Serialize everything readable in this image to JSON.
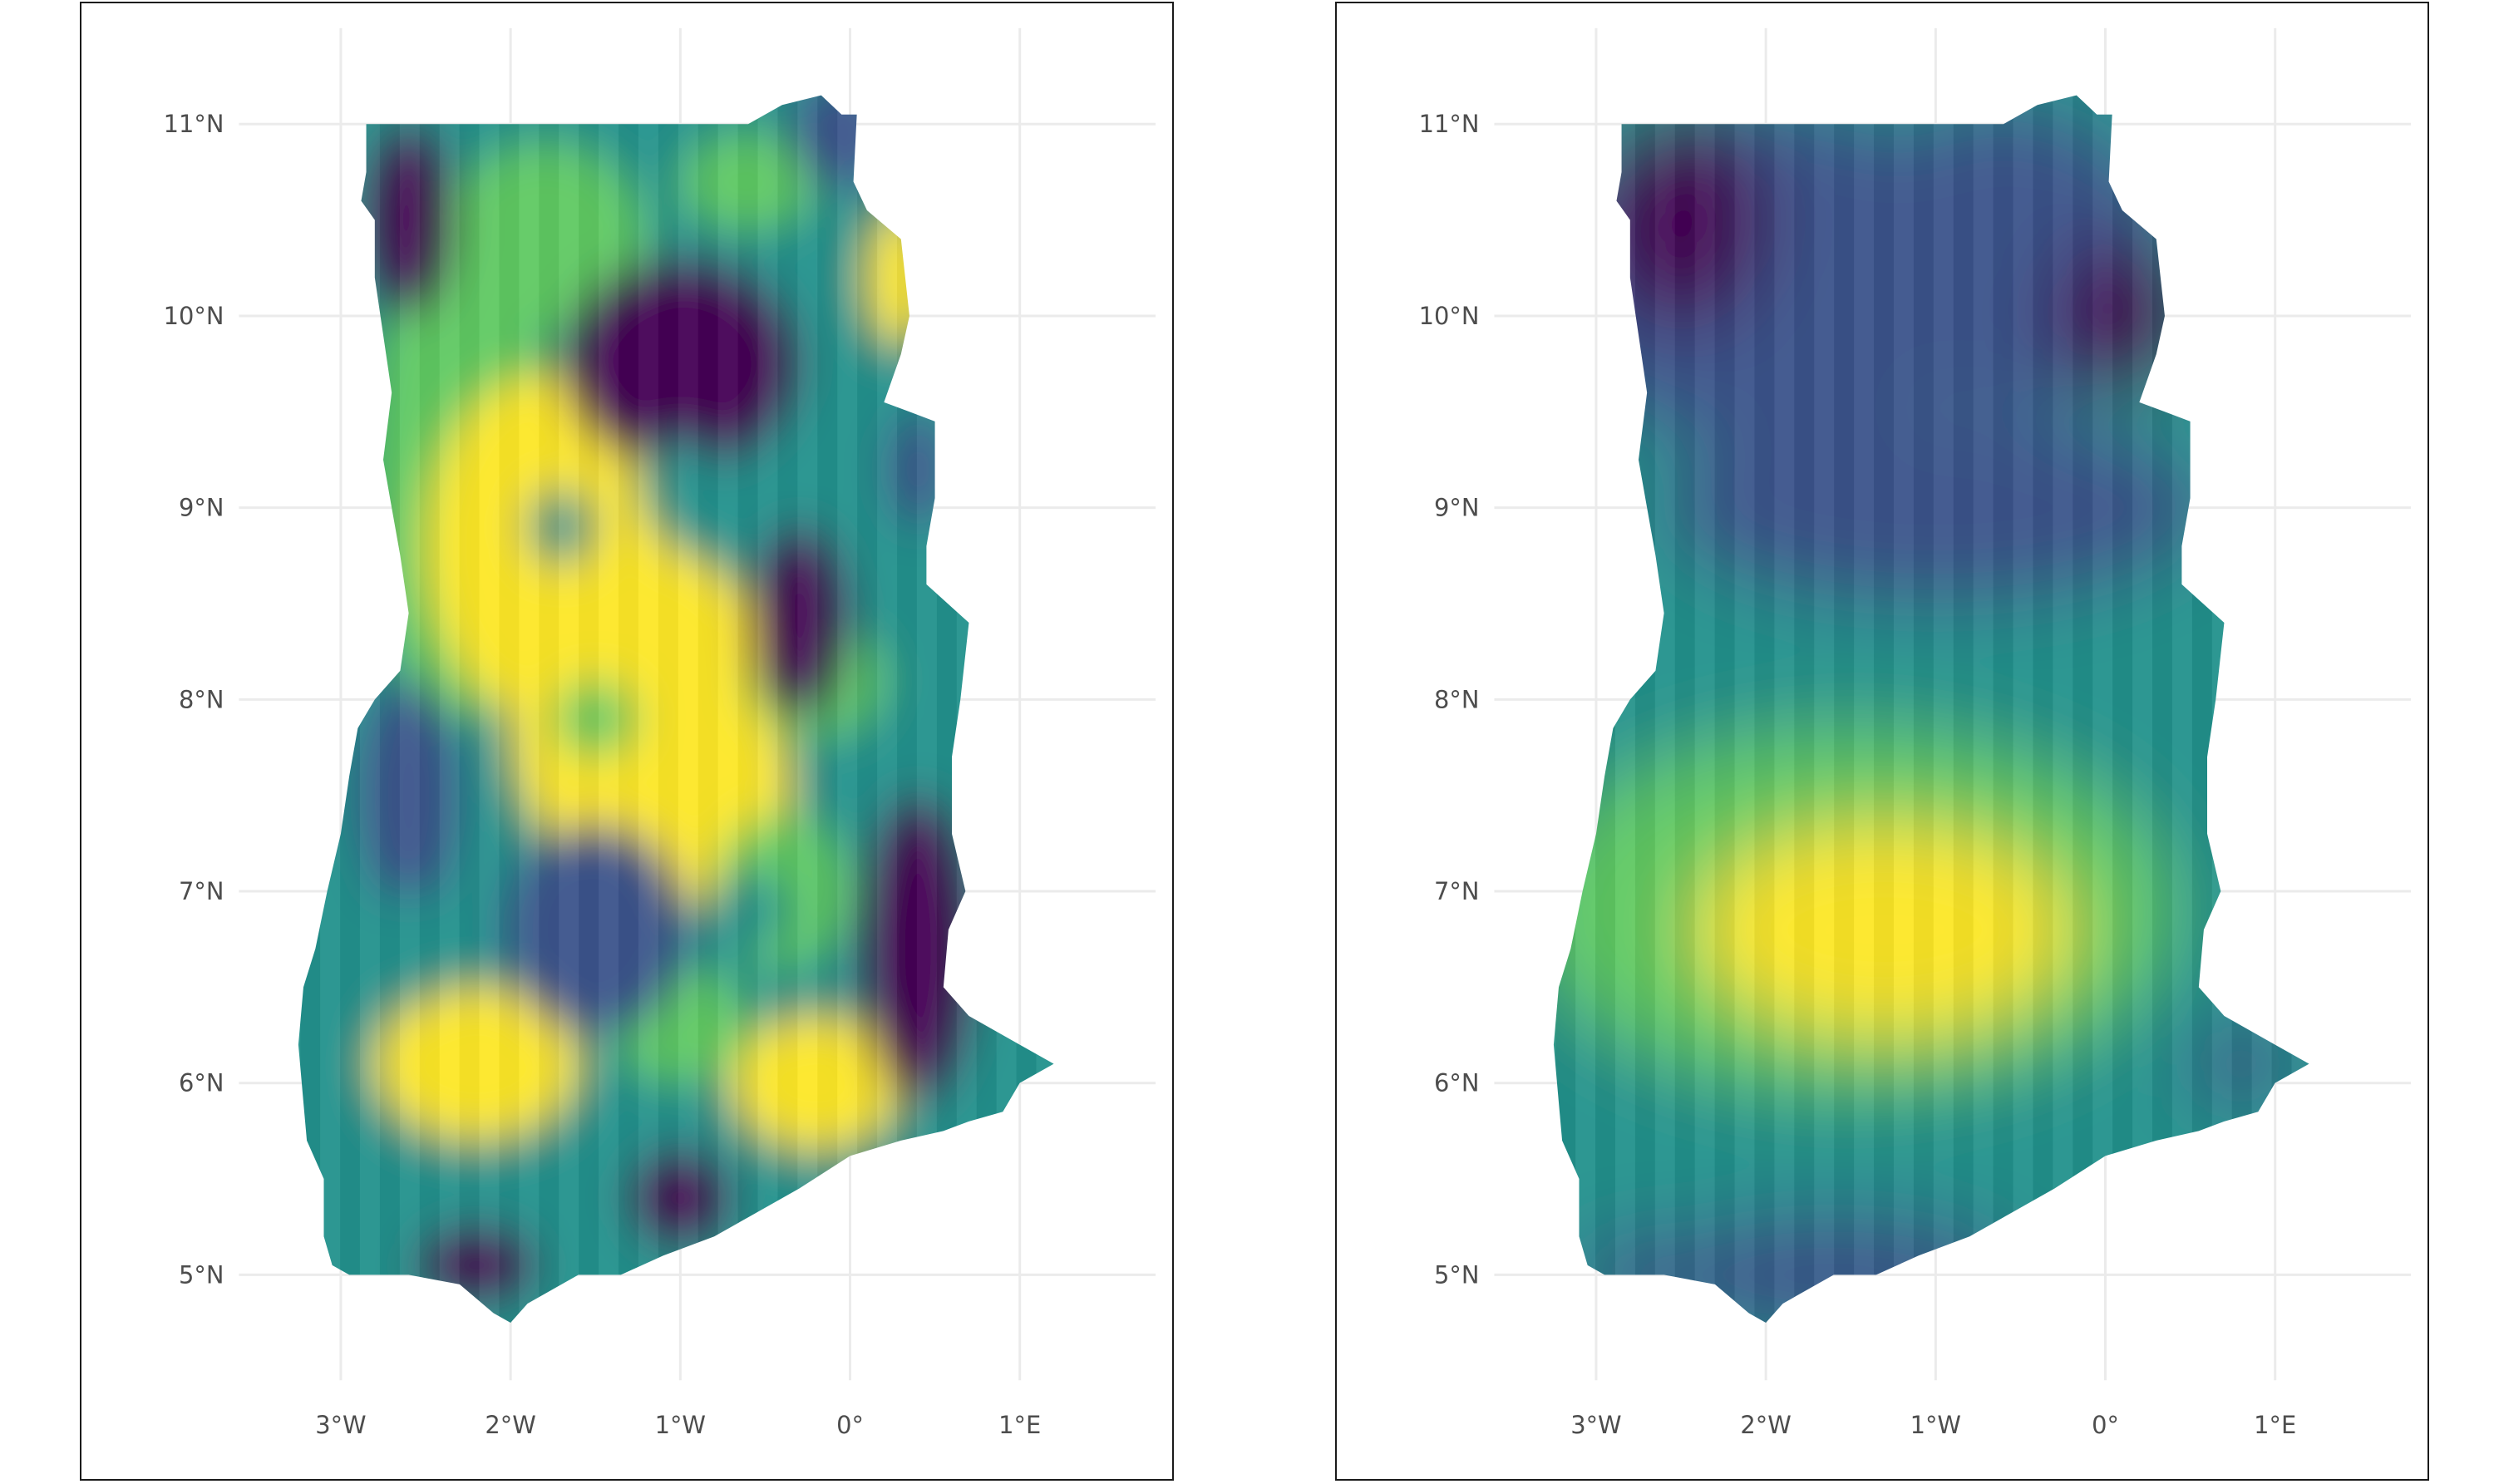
{
  "panels": [
    {
      "id": "left",
      "colormap": "viridis",
      "pattern": "patchy-local",
      "x_ticks": [
        {
          "value": -3,
          "label": "3°W"
        },
        {
          "value": -2,
          "label": "2°W"
        },
        {
          "value": -1,
          "label": "1°W"
        },
        {
          "value": 0,
          "label": "0°"
        },
        {
          "value": 1,
          "label": "1°E"
        }
      ],
      "y_ticks": [
        {
          "value": 5,
          "label": "5°N"
        },
        {
          "value": 6,
          "label": "6°N"
        },
        {
          "value": 7,
          "label": "7°N"
        },
        {
          "value": 8,
          "label": "8°N"
        },
        {
          "value": 9,
          "label": "9°N"
        },
        {
          "value": 10,
          "label": "10°N"
        },
        {
          "value": 11,
          "label": "11°N"
        }
      ],
      "xlim": [
        -3.6,
        1.8
      ],
      "ylim": [
        4.45,
        11.5
      ]
    },
    {
      "id": "right",
      "colormap": "viridis",
      "pattern": "smooth-peak-south-central",
      "x_ticks": [
        {
          "value": -3,
          "label": "3°W"
        },
        {
          "value": -2,
          "label": "2°W"
        },
        {
          "value": -1,
          "label": "1°W"
        },
        {
          "value": 0,
          "label": "0°"
        },
        {
          "value": 1,
          "label": "1°E"
        }
      ],
      "y_ticks": [
        {
          "value": 5,
          "label": "5°N"
        },
        {
          "value": 6,
          "label": "6°N"
        },
        {
          "value": 7,
          "label": "7°N"
        },
        {
          "value": 8,
          "label": "8°N"
        },
        {
          "value": 9,
          "label": "9°N"
        },
        {
          "value": 10,
          "label": "10°N"
        },
        {
          "value": 11,
          "label": "11°N"
        }
      ],
      "xlim": [
        -3.6,
        1.8
      ],
      "ylim": [
        4.45,
        11.5
      ]
    }
  ],
  "colors": {
    "viridis": [
      "#440154",
      "#3b528b",
      "#21918c",
      "#5ec962",
      "#fde725"
    ],
    "grid": "#ebebeb",
    "frame": "#1a1a1a",
    "tick_text": "#4d4d4d"
  }
}
